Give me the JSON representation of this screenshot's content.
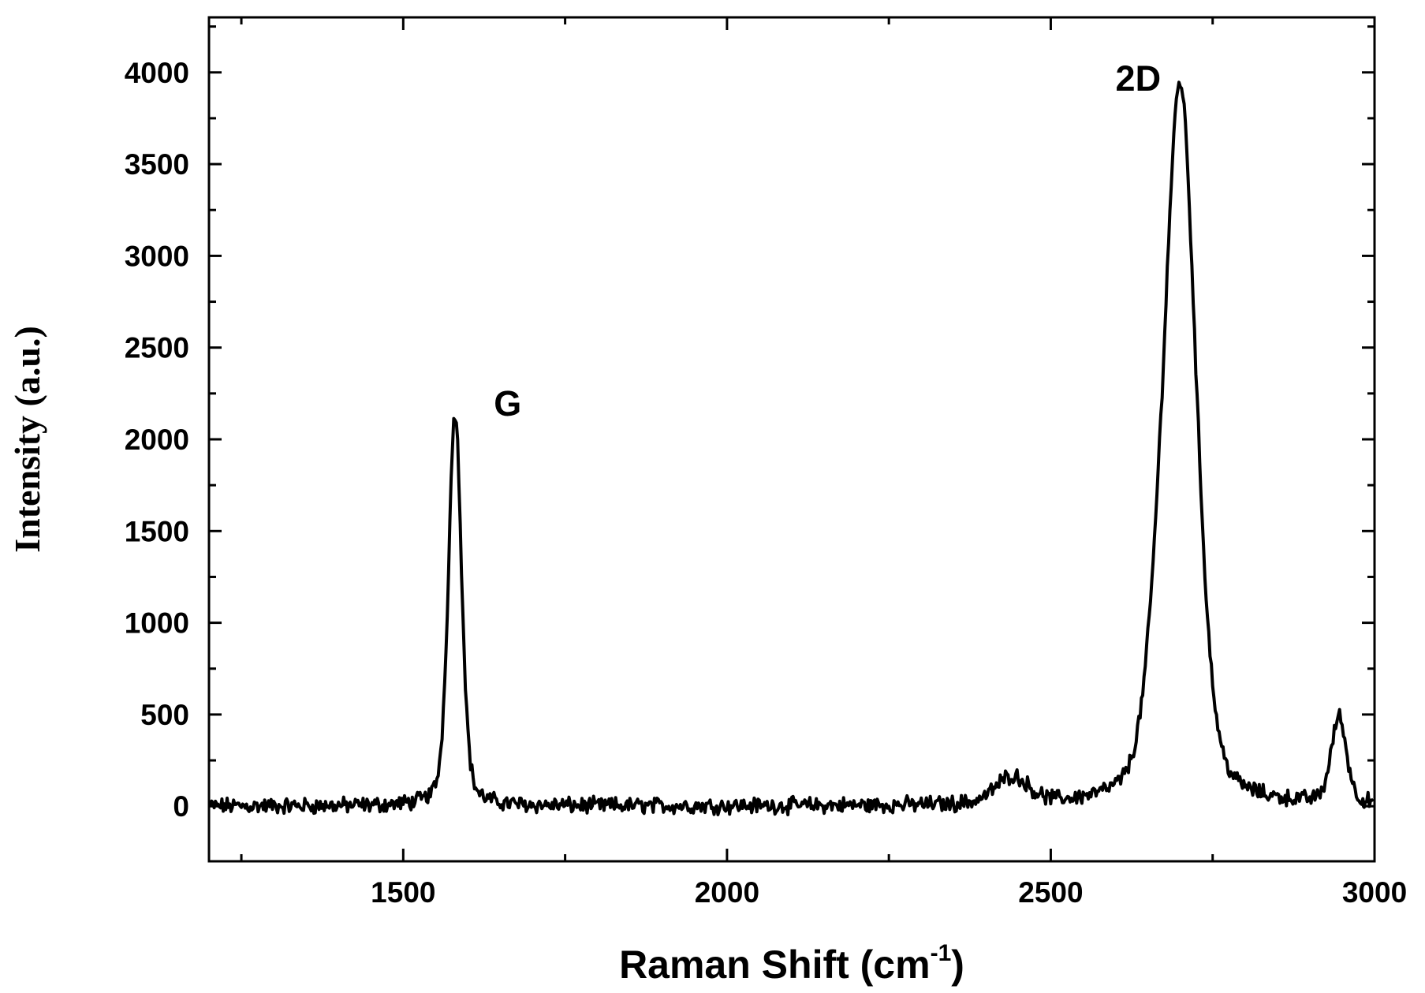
{
  "chart_data": {
    "type": "line",
    "xlabel_main": "Raman Shift (cm",
    "xlabel_sup": "-1",
    "xlabel_close": ")",
    "ylabel": "Intensity (a.u.)",
    "xlim": [
      1200,
      3000
    ],
    "ylim": [
      -300,
      4300
    ],
    "x_ticks": [
      "1500",
      "2000",
      "2500",
      "3000"
    ],
    "y_ticks": [
      "0",
      "500",
      "1000",
      "1500",
      "2000",
      "2500",
      "3000",
      "3500",
      "4000"
    ],
    "grid": false,
    "color": "#000000",
    "annotations": [
      {
        "text": "G",
        "x": 1640,
        "y": 2130
      },
      {
        "text": "2D",
        "x": 2600,
        "y": 3900
      }
    ],
    "peaks": [
      {
        "center": 1580,
        "height": 2150,
        "fwhm": 24
      },
      {
        "center": 2700,
        "height": 3900,
        "fwhm": 58
      },
      {
        "center": 2440,
        "height": 150,
        "fwhm": 60
      },
      {
        "center": 2945,
        "height": 470,
        "fwhm": 28
      },
      {
        "center": 2660,
        "height": 300,
        "fwhm": 45
      }
    ],
    "noise_amplitude": 35,
    "x_step": 2
  }
}
